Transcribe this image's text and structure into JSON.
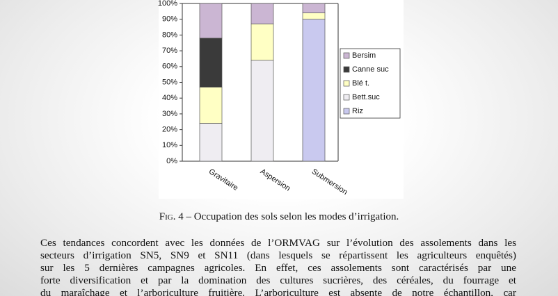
{
  "chart_data": {
    "type": "stacked_bar",
    "categories": [
      "Gravitaire",
      "Aspersion",
      "Submersion"
    ],
    "series": [
      {
        "name": "Riz",
        "color": "#c9c9ef",
        "values": [
          0,
          0,
          90
        ]
      },
      {
        "name": "Bett.suc",
        "color": "#efedf2",
        "values": [
          24,
          64,
          0
        ]
      },
      {
        "name": "Blé t.",
        "color": "#ffffc4",
        "values": [
          23,
          23,
          4
        ]
      },
      {
        "name": "Canne suc",
        "color": "#3a3a3a",
        "values": [
          31,
          0,
          0
        ]
      },
      {
        "name": "Bersim",
        "color": "#cbb6d3",
        "values": [
          22,
          13,
          6
        ]
      }
    ],
    "ylim": [
      0,
      100
    ],
    "yticks": [
      {
        "value": 0,
        "label": "0%"
      },
      {
        "value": 10,
        "label": "10%"
      },
      {
        "value": 20,
        "label": "20%"
      },
      {
        "value": 30,
        "label": "30%"
      },
      {
        "value": 40,
        "label": "40%"
      },
      {
        "value": 50,
        "label": "50%"
      },
      {
        "value": 60,
        "label": "60%"
      },
      {
        "value": 70,
        "label": "70%"
      },
      {
        "value": 80,
        "label": "80%"
      },
      {
        "value": 90,
        "label": "90%"
      },
      {
        "value": 100,
        "label": "100%"
      }
    ]
  },
  "caption": {
    "label": "Fig. 4",
    "text": "– Occupation des sols selon les modes d’irrigation."
  },
  "paragraph": {
    "lines": [
      "Ces tendances concordent avec les données de l’ORMVAG sur l’évolution des assolements dans les",
      "secteurs d’irrigation SN5, SN9 et SN11 (dans lesquels se répartissent les agriculteurs enquêtés)",
      "sur les 5 dernières campagnes agricoles. En effet, ces assolements sont caractérisés par une",
      "forte diversification et par la domination des cultures sucrières, des céréales, du fourrage et",
      "du maraîchage et l’arboriculture fruitière. L’arboriculture est absente de notre échantillon, car"
    ]
  }
}
